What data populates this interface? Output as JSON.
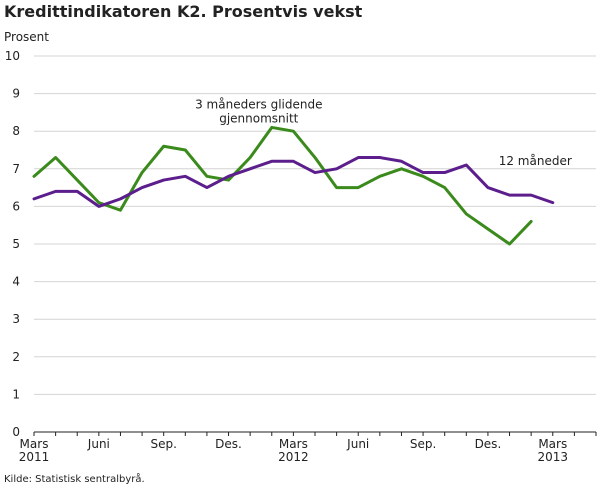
{
  "title": "Kredittindikatoren K2. Prosentvis vekst",
  "ylabel": "Prosent",
  "source": "Kilde: Statistisk sentralbyrå.",
  "chart_data": {
    "type": "line",
    "ylim": [
      0,
      10
    ],
    "yticks": [
      "0",
      "1",
      "2",
      "3",
      "4",
      "5",
      "6",
      "7",
      "8",
      "9",
      "10"
    ],
    "grid": true,
    "x_periods": 26,
    "xticks": [
      {
        "index": 0,
        "lines": [
          "Mars",
          "2011"
        ]
      },
      {
        "index": 3,
        "lines": [
          "Juni"
        ]
      },
      {
        "index": 6,
        "lines": [
          "Sep."
        ]
      },
      {
        "index": 9,
        "lines": [
          "Des."
        ]
      },
      {
        "index": 12,
        "lines": [
          "Mars",
          "2012"
        ]
      },
      {
        "index": 15,
        "lines": [
          "Juni"
        ]
      },
      {
        "index": 18,
        "lines": [
          "Sep."
        ]
      },
      {
        "index": 21,
        "lines": [
          "Des."
        ]
      },
      {
        "index": 24,
        "lines": [
          "Mars",
          "2013"
        ]
      }
    ],
    "series": [
      {
        "name": "3 måneders glidende gjennomsnitt",
        "label_lines": [
          "3 måneders glidende",
          "gjennomsnitt"
        ],
        "color": "#3a8a1c",
        "values": [
          6.8,
          7.3,
          6.7,
          6.1,
          5.9,
          6.9,
          7.6,
          7.5,
          6.8,
          6.7,
          7.3,
          8.1,
          8.0,
          7.3,
          6.5,
          6.5,
          6.8,
          7.0,
          6.8,
          6.5,
          5.8,
          5.4,
          5.0,
          5.6
        ]
      },
      {
        "name": "12 måneder",
        "label_lines": [
          "12 måneder"
        ],
        "color": "#5c1e8c",
        "values": [
          6.2,
          6.4,
          6.4,
          6.0,
          6.2,
          6.5,
          6.7,
          6.8,
          6.5,
          6.8,
          7.0,
          7.2,
          7.2,
          6.9,
          7.0,
          7.3,
          7.3,
          7.2,
          6.9,
          6.9,
          7.1,
          6.5,
          6.3,
          6.3,
          6.1
        ]
      }
    ]
  }
}
